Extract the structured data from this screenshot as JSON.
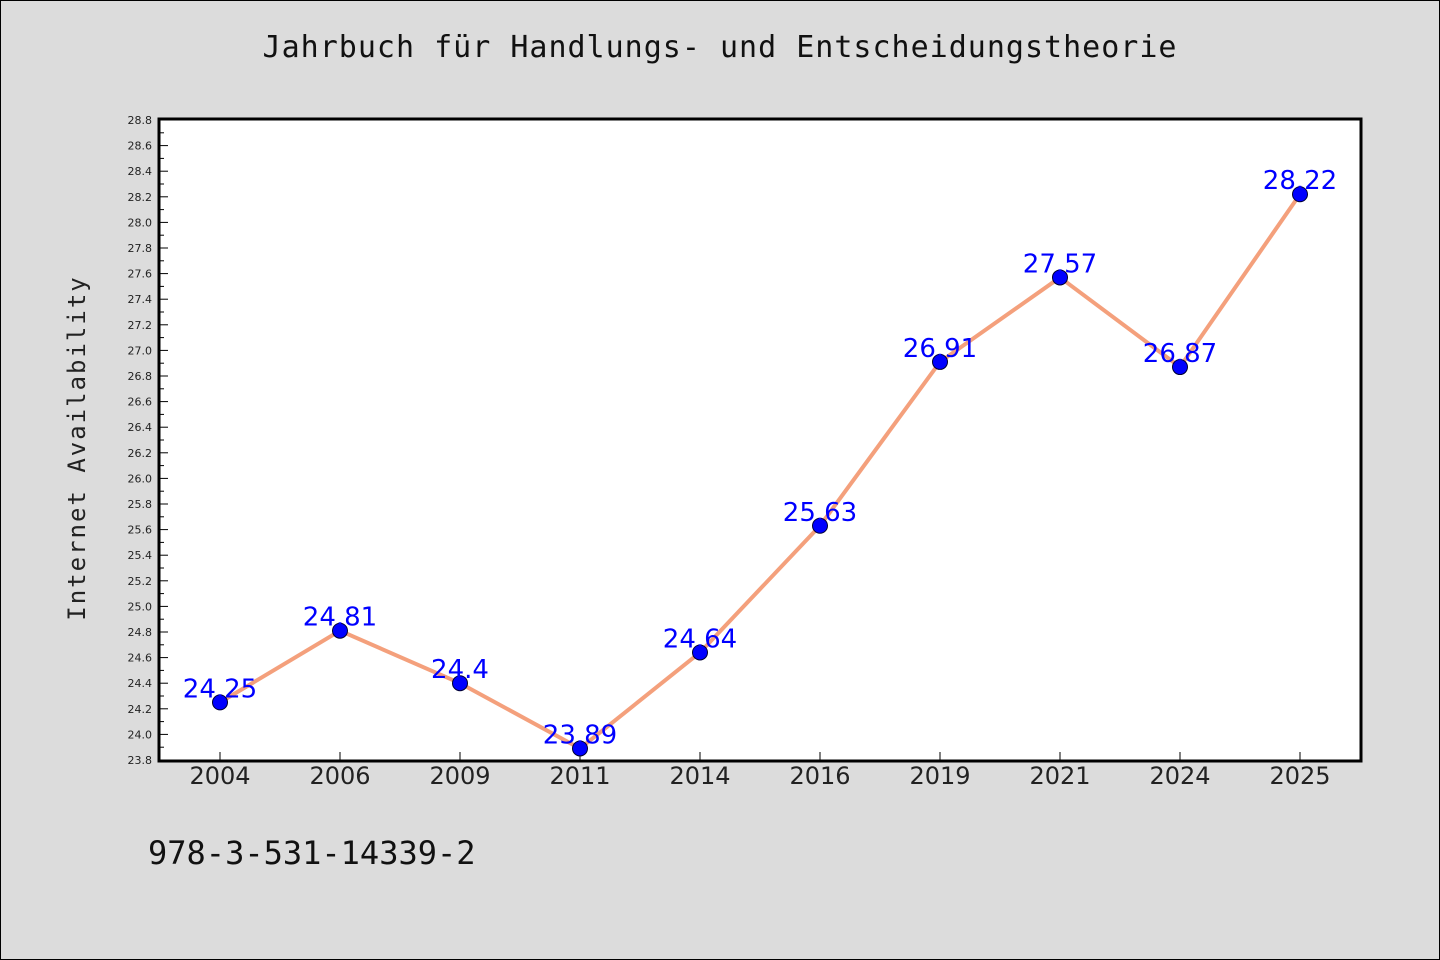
{
  "chart": {
    "title": "Jahrbuch für Handlungs- und Entscheidungstheorie",
    "ylabel": "Internet Availability",
    "footer": "978-3-531-14339-2"
  },
  "chart_data": {
    "type": "line",
    "title": "Jahrbuch für Handlungs- und Entscheidungstheorie",
    "xlabel": "",
    "ylabel": "Internet Availability",
    "categories": [
      "2004",
      "2006",
      "2009",
      "2011",
      "2014",
      "2016",
      "2019",
      "2021",
      "2024",
      "2025"
    ],
    "series": [
      {
        "values": [
          24.25,
          24.81,
          24.4,
          23.89,
          24.64,
          25.63,
          26.91,
          27.57,
          26.87,
          28.22
        ],
        "labels": [
          "24.25",
          "24.81",
          "24.4",
          "23.89",
          "24.64",
          "25.63",
          "26.91",
          "27.57",
          "26.87",
          "28.22"
        ],
        "line_color": "#f4a07c",
        "marker_color": "#0000ff"
      }
    ],
    "ylim": [
      23.8,
      28.8
    ],
    "yticks": [
      "23.8",
      "24.0",
      "24.2",
      "24.4",
      "24.6",
      "24.8",
      "25.0",
      "25.2",
      "25.4",
      "25.6",
      "25.8",
      "26.0",
      "26.2",
      "26.4",
      "26.6",
      "26.8",
      "27.0",
      "27.2",
      "27.4",
      "27.6",
      "27.8",
      "28.0",
      "28.2",
      "28.4",
      "28.6",
      "28.8"
    ],
    "grid": false,
    "legend": "none",
    "data_label_color": "#0000ff",
    "background_color": "#dcdcdc",
    "plot_background_color": "#ffffff"
  }
}
